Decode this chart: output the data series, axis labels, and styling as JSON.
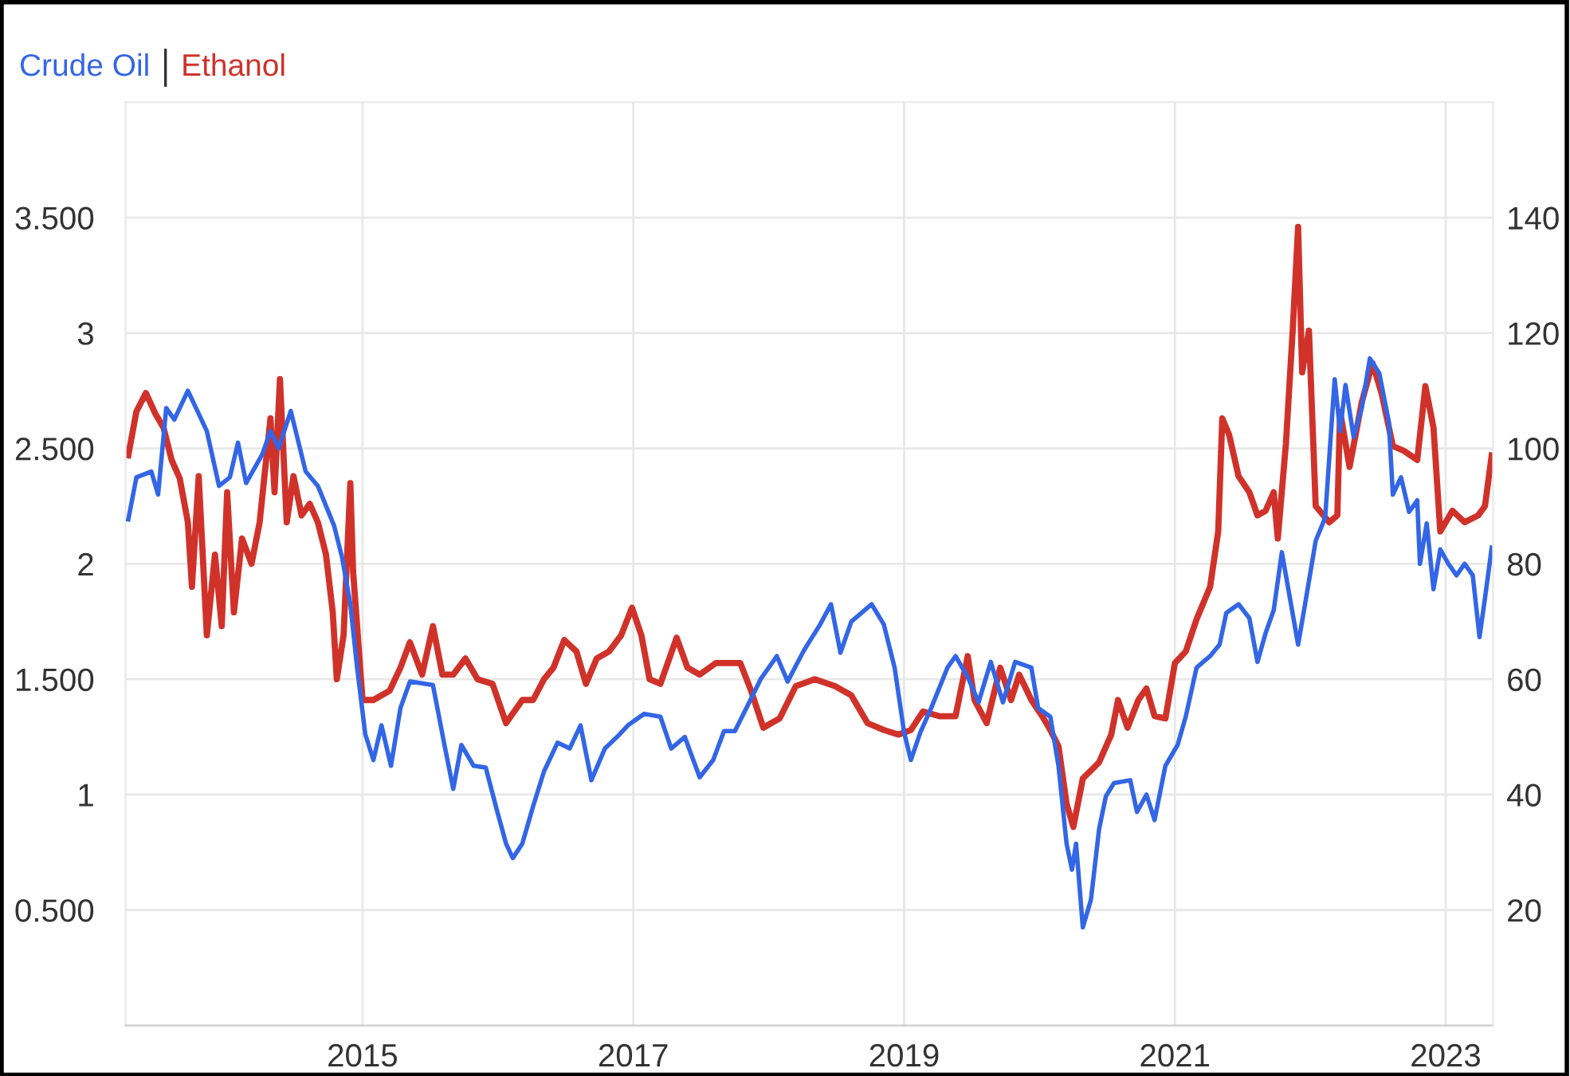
{
  "chart_data": {
    "type": "line",
    "legend": "top left",
    "grid": true,
    "marker": "none",
    "line_style": "solid",
    "xlim": [
      2013.25,
      2023.35
    ],
    "xticks": [
      2015,
      2017,
      2019,
      2021,
      2023
    ],
    "ylim": [
      0,
      4
    ],
    "yticks": [
      {
        "value": 0.5,
        "label": "0.500"
      },
      1,
      {
        "value": 1.5,
        "label": "1.500"
      },
      2,
      {
        "value": 2.5,
        "label": "2.500"
      },
      3,
      {
        "value": 3.5,
        "label": "3.500"
      }
    ],
    "y2lim": [
      0,
      160
    ],
    "y2ticks": [
      20,
      40,
      60,
      80,
      100,
      120,
      140
    ],
    "series": [
      {
        "name": "Crude Oil",
        "color": "#3366e6",
        "axis": "y2",
        "x": [
          2013.27,
          2013.33,
          2013.44,
          2013.49,
          2013.55,
          2013.61,
          2013.71,
          2013.79,
          2013.85,
          2013.94,
          2014.02,
          2014.08,
          2014.14,
          2014.26,
          2014.32,
          2014.38,
          2014.47,
          2014.58,
          2014.67,
          2014.79,
          2014.85,
          2014.91,
          2014.96,
          2015.02,
          2015.08,
          2015.14,
          2015.21,
          2015.28,
          2015.35,
          2015.52,
          2015.61,
          2015.67,
          2015.73,
          2015.82,
          2015.91,
          2015.99,
          2016.06,
          2016.11,
          2016.18,
          2016.26,
          2016.34,
          2016.44,
          2016.53,
          2016.61,
          2016.69,
          2016.79,
          2016.88,
          2016.96,
          2017.08,
          2017.2,
          2017.28,
          2017.38,
          2017.49,
          2017.59,
          2017.67,
          2017.75,
          2017.85,
          2017.94,
          2018.06,
          2018.14,
          2018.26,
          2018.38,
          2018.46,
          2018.53,
          2018.61,
          2018.76,
          2018.85,
          2018.93,
          2019.0,
          2019.05,
          2019.12,
          2019.2,
          2019.32,
          2019.38,
          2019.47,
          2019.55,
          2019.64,
          2019.73,
          2019.82,
          2019.94,
          2019.99,
          2020.08,
          2020.14,
          2020.2,
          2020.24,
          2020.27,
          2020.32,
          2020.38,
          2020.44,
          2020.49,
          2020.55,
          2020.67,
          2020.72,
          2020.79,
          2020.85,
          2020.93,
          2021.02,
          2021.08,
          2021.16,
          2021.26,
          2021.33,
          2021.38,
          2021.47,
          2021.55,
          2021.61,
          2021.67,
          2021.73,
          2021.79,
          2021.85,
          2021.91,
          2021.96,
          2022.04,
          2022.11,
          2022.18,
          2022.22,
          2022.26,
          2022.32,
          2022.38,
          2022.44,
          2022.51,
          2022.58,
          2022.61,
          2022.67,
          2022.73,
          2022.79,
          2022.81,
          2022.86,
          2022.91,
          2022.96,
          2023.02,
          2023.08,
          2023.14,
          2023.2,
          2023.25,
          2023.29,
          2023.34
        ],
        "values": [
          87.7,
          95,
          96,
          92,
          107,
          105,
          110,
          106,
          103,
          93.5,
          95,
          101,
          94,
          99,
          103,
          100,
          106.5,
          96,
          93.5,
          86.6,
          81,
          73,
          62,
          50.5,
          46,
          52,
          45,
          55,
          59.6,
          59,
          48,
          41,
          48.6,
          45,
          44.7,
          37.5,
          31.5,
          29,
          31.5,
          38,
          44,
          49,
          48,
          52,
          42.5,
          48,
          50,
          52,
          54,
          53.5,
          48,
          50,
          43,
          46,
          51,
          51,
          55.7,
          60,
          64,
          59.6,
          65,
          69.5,
          73,
          64.6,
          70,
          73,
          69.5,
          62,
          50.8,
          46,
          50.8,
          55,
          62,
          64,
          60.4,
          56,
          63,
          56,
          63,
          62,
          55,
          53.5,
          45,
          31.5,
          27,
          31.5,
          17,
          21.8,
          34,
          39.7,
          42,
          42.5,
          37,
          40,
          35.6,
          45,
          48.6,
          53.5,
          62,
          64,
          66,
          71.5,
          73,
          70.6,
          63,
          68,
          72,
          82,
          74,
          66,
          72.8,
          84,
          88,
          112,
          103,
          111,
          102,
          107,
          115.6,
          113,
          104.6,
          92,
          95,
          89,
          91,
          80,
          87,
          75.6,
          82.5,
          80,
          78,
          80,
          78,
          67.3,
          74,
          82.8
        ]
      },
      {
        "name": "Ethanol",
        "color": "#d0322a",
        "x": [
          2013.27,
          2013.33,
          2013.4,
          2013.47,
          2013.53,
          2013.59,
          2013.65,
          2013.71,
          2013.74,
          2013.79,
          2013.85,
          2013.91,
          2013.96,
          2014.0,
          2014.05,
          2014.11,
          2014.18,
          2014.24,
          2014.32,
          2014.35,
          2014.39,
          2014.44,
          2014.49,
          2014.55,
          2014.61,
          2014.67,
          2014.73,
          2014.78,
          2014.81,
          2014.86,
          2014.91,
          2014.93,
          2015.0,
          2015.08,
          2015.2,
          2015.28,
          2015.35,
          2015.44,
          2015.52,
          2015.59,
          2015.67,
          2015.76,
          2015.85,
          2015.96,
          2016.06,
          2016.18,
          2016.26,
          2016.34,
          2016.41,
          2016.49,
          2016.58,
          2016.65,
          2016.73,
          2016.82,
          2016.91,
          2016.99,
          2017.06,
          2017.12,
          2017.2,
          2017.32,
          2017.4,
          2017.49,
          2017.61,
          2017.79,
          2017.87,
          2017.96,
          2018.08,
          2018.2,
          2018.34,
          2018.49,
          2018.61,
          2018.73,
          2018.85,
          2018.96,
          2019.05,
          2019.14,
          2019.26,
          2019.38,
          2019.47,
          2019.52,
          2019.61,
          2019.71,
          2019.79,
          2019.85,
          2019.94,
          2020.02,
          2020.08,
          2020.14,
          2020.2,
          2020.25,
          2020.32,
          2020.44,
          2020.53,
          2020.58,
          2020.65,
          2020.73,
          2020.79,
          2020.85,
          2020.93,
          2021.0,
          2021.08,
          2021.16,
          2021.26,
          2021.32,
          2021.35,
          2021.4,
          2021.47,
          2021.55,
          2021.61,
          2021.67,
          2021.73,
          2021.76,
          2021.82,
          2021.87,
          2021.91,
          2021.94,
          2021.99,
          2022.04,
          2022.14,
          2022.2,
          2022.22,
          2022.29,
          2022.38,
          2022.46,
          2022.53,
          2022.61,
          2022.69,
          2022.79,
          2022.85,
          2022.91,
          2022.96,
          2023.05,
          2023.14,
          2023.24,
          2023.29,
          2023.34
        ],
        "values": [
          2.47,
          2.66,
          2.74,
          2.65,
          2.59,
          2.45,
          2.37,
          2.18,
          1.9,
          2.38,
          1.69,
          2.04,
          1.73,
          2.31,
          1.79,
          2.11,
          2,
          2.18,
          2.63,
          2.31,
          2.8,
          2.18,
          2.38,
          2.21,
          2.26,
          2.18,
          2.04,
          1.79,
          1.5,
          1.69,
          2.35,
          1.97,
          1.41,
          1.41,
          1.45,
          1.55,
          1.66,
          1.52,
          1.73,
          1.52,
          1.52,
          1.59,
          1.5,
          1.48,
          1.31,
          1.41,
          1.41,
          1.5,
          1.55,
          1.67,
          1.62,
          1.48,
          1.59,
          1.62,
          1.69,
          1.81,
          1.69,
          1.5,
          1.48,
          1.68,
          1.55,
          1.52,
          1.57,
          1.57,
          1.45,
          1.29,
          1.33,
          1.47,
          1.5,
          1.47,
          1.43,
          1.31,
          1.28,
          1.26,
          1.28,
          1.36,
          1.34,
          1.34,
          1.6,
          1.41,
          1.31,
          1.55,
          1.41,
          1.52,
          1.41,
          1.34,
          1.28,
          1.21,
          0.96,
          0.86,
          1.07,
          1.14,
          1.26,
          1.41,
          1.29,
          1.41,
          1.46,
          1.34,
          1.33,
          1.57,
          1.62,
          1.76,
          1.9,
          2.14,
          2.63,
          2.56,
          2.38,
          2.31,
          2.21,
          2.23,
          2.31,
          2.11,
          2.52,
          3.01,
          3.46,
          2.83,
          3.01,
          2.25,
          2.18,
          2.21,
          2.66,
          2.42,
          2.7,
          2.87,
          2.73,
          2.51,
          2.49,
          2.45,
          2.77,
          2.59,
          2.14,
          2.23,
          2.18,
          2.21,
          2.25,
          2.47
        ]
      }
    ]
  }
}
